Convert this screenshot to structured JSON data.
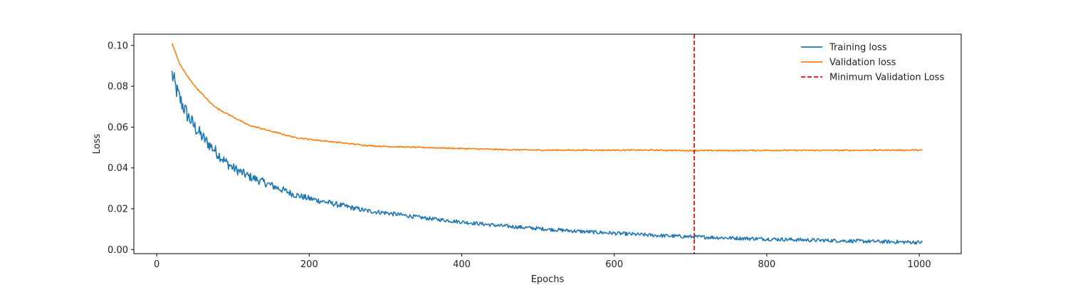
{
  "chart_data": {
    "type": "line",
    "title": "",
    "xlabel": "Epochs",
    "ylabel": "Loss",
    "xlim": [
      -30,
      1055
    ],
    "ylim": [
      -0.002,
      0.1055
    ],
    "xticks": [
      0,
      200,
      400,
      600,
      800,
      1000
    ],
    "yticks": [
      0.0,
      0.02,
      0.04,
      0.06,
      0.08,
      0.1
    ],
    "xtick_labels": [
      "0",
      "200",
      "400",
      "600",
      "800",
      "1000"
    ],
    "ytick_labels": [
      "0.00",
      "0.02",
      "0.04",
      "0.06",
      "0.08",
      "0.10"
    ],
    "grid": false,
    "legend_position": "top-right",
    "series": [
      {
        "name": "Training loss",
        "color": "#1f77b4",
        "x_start": 20,
        "x_end": 1004,
        "x": [
          20,
          25,
          30,
          40,
          50,
          60,
          70,
          80,
          90,
          100,
          120,
          140,
          160,
          180,
          200,
          225,
          250,
          275,
          300,
          350,
          400,
          450,
          500,
          550,
          600,
          650,
          700,
          750,
          800,
          850,
          900,
          950,
          1004
        ],
        "values": [
          0.086,
          0.079,
          0.074,
          0.066,
          0.06,
          0.055,
          0.051,
          0.047,
          0.043,
          0.04,
          0.036,
          0.033,
          0.03,
          0.027,
          0.025,
          0.023,
          0.021,
          0.019,
          0.018,
          0.0155,
          0.0135,
          0.0117,
          0.0103,
          0.009,
          0.008,
          0.007,
          0.0063,
          0.0057,
          0.0052,
          0.0047,
          0.0043,
          0.0039,
          0.0035
        ],
        "noise": 0.0018
      },
      {
        "name": "Validation loss",
        "color": "#ff7f0e",
        "x_start": 20,
        "x_end": 1004,
        "x": [
          20,
          25,
          30,
          40,
          50,
          60,
          70,
          80,
          90,
          100,
          120,
          140,
          160,
          180,
          200,
          225,
          250,
          275,
          300,
          350,
          400,
          450,
          500,
          550,
          600,
          650,
          700,
          750,
          800,
          850,
          900,
          950,
          1004
        ],
        "values": [
          0.101,
          0.096,
          0.091,
          0.085,
          0.08,
          0.076,
          0.072,
          0.069,
          0.067,
          0.065,
          0.061,
          0.059,
          0.057,
          0.055,
          0.054,
          0.053,
          0.052,
          0.051,
          0.0505,
          0.05,
          0.0495,
          0.049,
          0.0487,
          0.0487,
          0.0487,
          0.0487,
          0.0485,
          0.0485,
          0.0486,
          0.0486,
          0.0486,
          0.0487,
          0.0487
        ],
        "noise": 0.0003
      }
    ],
    "reference_lines": [
      {
        "name": "Minimum Validation Loss",
        "orientation": "vertical",
        "x": 705,
        "color": "#ff0000",
        "style": "dashed"
      }
    ]
  }
}
